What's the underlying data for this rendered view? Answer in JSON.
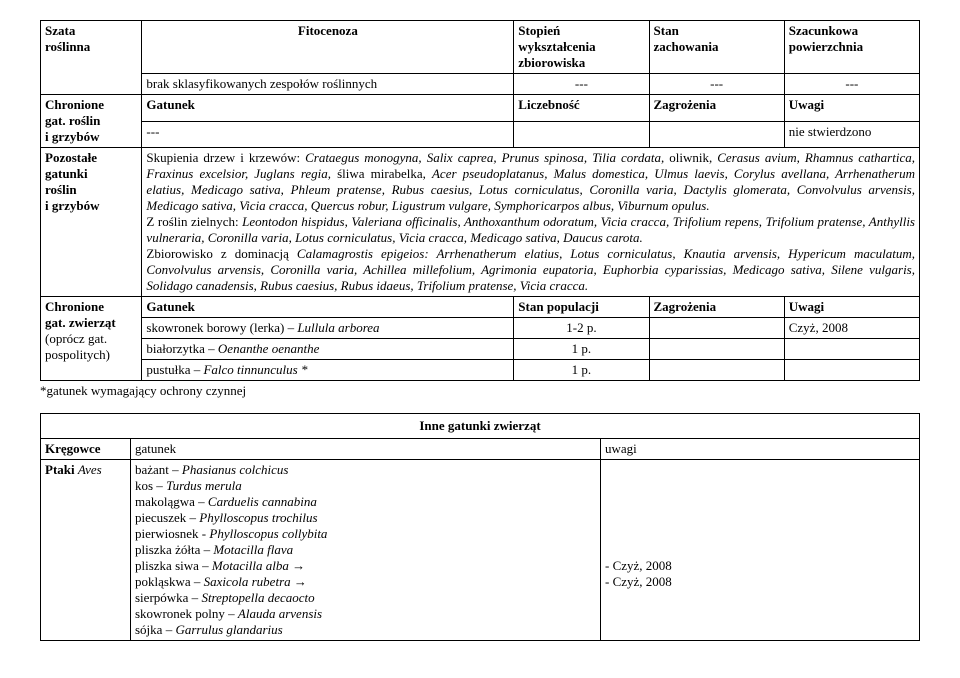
{
  "t1": {
    "r0": {
      "c0": "Szata\nroślinna",
      "c1": "Fitocenoza",
      "c2": "Stopień\nwykształcenia\nzbiorowiska",
      "c3": "Stan\nzachowania",
      "c4": "Szacunkowa\npowierzchnia"
    },
    "r1": {
      "c1": "brak sklasyfikowanych zespołów roślinnych",
      "c2": "---",
      "c3": "---",
      "c4": "---"
    },
    "r2": {
      "c0": "Chronione\ngat. roślin\ni grzybów",
      "c1a": "Gatunek",
      "c1b": "Liczebność",
      "c1c": "Zagrożenia",
      "c1d": "Uwagi"
    },
    "r3": {
      "c1a": "---",
      "c1d": "nie stwierdzono"
    },
    "r4": {
      "c0": "Pozostałe\ngatunki\nroślin\ni grzybów",
      "para1_a": "Skupienia drzew i krzewów: ",
      "para1_b": "Crataegus monogyna, Salix caprea, Prunus spinosa, Tilia cordata, ",
      "para1_c": "oliwnik, ",
      "para1_d": "Cerasus avium, Rhamnus cathartica, Fraxinus excelsior, Juglans regia, ",
      "para1_e": "śliwa mirabelka, ",
      "para1_f": "Acer pseudoplatanus, Malus domestica, Ulmus laevis, Corylus avellana, Arrhenatherum elatius, Medicago sativa, Phleum pratense, Rubus caesius, Lotus corniculatus, Coronilla varia, Dactylis glomerata, Convolvulus arvensis, Medicago sativa, Vicia cracca, Quercus robur, Ligustrum vulgare, Symphoricarpos albus, Viburnum opulus.",
      "para2_a": "Z roślin zielnych: ",
      "para2_b": "Leontodon hispidus, Valeriana officinalis, Anthoxanthum odoratum, Vicia cracca, Trifolium repens, Trifolium pratense, Anthyllis vulneraria, Coronilla varia, Lotus corniculatus, Vicia cracca, Medicago sativa, Daucus carota.",
      "para3_a": "Zbiorowisko z dominacją ",
      "para3_b": "Calamagrostis epigeios: Arrhenatherum elatius, Lotus corniculatus, Knautia arvensis, Hypericum maculatum, Convolvulus arvensis, Coronilla varia, Achillea millefolium, Agrimonia eupatoria, Euphorbia cyparissias, Medicago sativa, Silene vulgaris, Solidago canadensis, Rubus caesius, Rubus idaeus, Trifolium pratense, Vicia cracca."
    },
    "r5": {
      "c0": "Chronione\ngat. zwierząt\n(oprócz gat.\npospolitych)",
      "h1": "Gatunek",
      "h2": "Stan populacji",
      "h3": "Zagrożenia",
      "h4": "Uwagi"
    },
    "r6": {
      "a": "skowronek borowy (lerka) – ",
      "b": "Lullula arborea",
      "c": "1-2 p.",
      "d": "",
      "e": "Czyż, 2008"
    },
    "r7": {
      "a": "białorzytka – ",
      "b": "Oenanthe oenanthe",
      "c": "1 p.",
      "d": "",
      "e": ""
    },
    "r8": {
      "a": "pustułka – ",
      "b": "Falco tinnunculus *",
      "c": "1 p.",
      "d": "",
      "e": ""
    },
    "footnote": "*gatunek wymagający ochrony czynnej"
  },
  "t2": {
    "title": "Inne gatunki zwierząt",
    "r0": {
      "c0": "Kręgowce",
      "c1": "gatunek",
      "c2": "uwagi"
    },
    "r1": {
      "c0a": "Ptaki ",
      "c0b": "Aves",
      "lines": [
        {
          "a": "bażant – ",
          "b": "Phasianus colchicus"
        },
        {
          "a": "kos – ",
          "b": "Turdus merula"
        },
        {
          "a": "makolągwa – ",
          "b": "Carduelis cannabina"
        },
        {
          "a": "piecuszek – ",
          "b": "Phylloscopus trochilus"
        },
        {
          "a": "pierwiosnek - ",
          "b": "Phylloscopus collybita"
        },
        {
          "a": "pliszka żółta – ",
          "b": "Motacilla flava"
        },
        {
          "a": "pliszka siwa – ",
          "b": "Motacilla alba →"
        },
        {
          "a": "pokląskwa – ",
          "b": "Saxicola rubetra →"
        },
        {
          "a": "sierpówka – ",
          "b": "Streptopella decaocto"
        },
        {
          "a": "skowronek polny – ",
          "b": "Alauda arvensis"
        },
        {
          "a": "sójka – ",
          "b": "Garrulus glandarius"
        }
      ],
      "notes": [
        "",
        "",
        "",
        "",
        "",
        "",
        "- Czyż, 2008",
        "- Czyż, 2008",
        "",
        "",
        ""
      ]
    }
  }
}
